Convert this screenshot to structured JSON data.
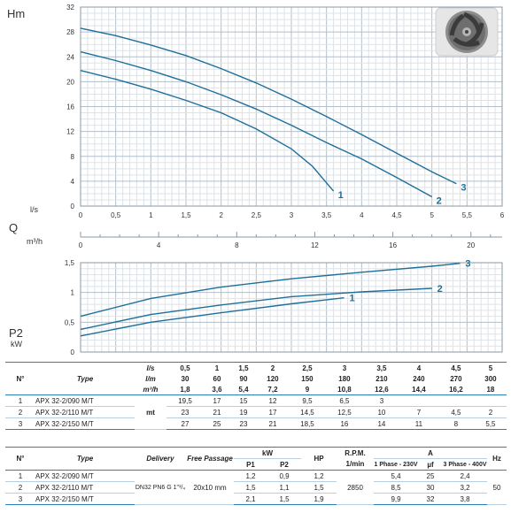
{
  "chart_data": [
    {
      "type": "line",
      "ylabel": "Hm",
      "xlabel": "l/s",
      "xlim": [
        0,
        6
      ],
      "ylim": [
        0,
        32
      ],
      "x_ticks": [
        "0",
        "0,5",
        "1",
        "1,5",
        "2",
        "2,5",
        "3",
        "3,5",
        "4",
        "4,5",
        "5",
        "5,5",
        "6"
      ],
      "y_ticks": [
        "0",
        "4",
        "8",
        "12",
        "16",
        "20",
        "24",
        "28",
        "32"
      ],
      "grid": true,
      "series": [
        {
          "name": "1",
          "color": "#1f6f9a",
          "points": [
            [
              0,
              21.8
            ],
            [
              0.5,
              20.4
            ],
            [
              1,
              18.8
            ],
            [
              1.5,
              17.0
            ],
            [
              2,
              15.0
            ],
            [
              2.5,
              12.4
            ],
            [
              3,
              9.2
            ],
            [
              3.3,
              6.4
            ],
            [
              3.6,
              2.4
            ]
          ]
        },
        {
          "name": "2",
          "color": "#1f6f9a",
          "points": [
            [
              0,
              24.8
            ],
            [
              0.5,
              23.4
            ],
            [
              1,
              21.8
            ],
            [
              1.5,
              20.0
            ],
            [
              2,
              17.9
            ],
            [
              2.5,
              15.6
            ],
            [
              3,
              13.0
            ],
            [
              3.5,
              10.2
            ],
            [
              4,
              7.6
            ],
            [
              4.5,
              4.6
            ],
            [
              5,
              1.5
            ]
          ]
        },
        {
          "name": "3",
          "color": "#1f6f9a",
          "points": [
            [
              0,
              28.6
            ],
            [
              0.5,
              27.4
            ],
            [
              1,
              25.9
            ],
            [
              1.5,
              24.2
            ],
            [
              2,
              22.1
            ],
            [
              2.5,
              19.8
            ],
            [
              3,
              17.2
            ],
            [
              3.5,
              14.4
            ],
            [
              4,
              11.5
            ],
            [
              4.5,
              8.5
            ],
            [
              5,
              5.5
            ],
            [
              5.35,
              3.6
            ]
          ]
        }
      ]
    },
    {
      "type": "axis",
      "label": "Q",
      "unit": "m³/h",
      "xlim": [
        0,
        21.6
      ],
      "ticks": [
        0,
        4,
        8,
        12,
        16,
        20
      ],
      "tick_labels": [
        "0",
        "4",
        "8",
        "12",
        "16",
        "20"
      ]
    },
    {
      "type": "line",
      "ylabel": "P2",
      "yunit": "kW",
      "xlim": [
        0,
        6
      ],
      "ylim": [
        0,
        1.5
      ],
      "y_ticks": [
        "0",
        "0,5",
        "1",
        "1,5"
      ],
      "grid": true,
      "series": [
        {
          "name": "1",
          "color": "#1f6f9a",
          "points": [
            [
              0,
              0.27
            ],
            [
              1,
              0.5
            ],
            [
              2,
              0.66
            ],
            [
              3,
              0.81
            ],
            [
              3.75,
              0.91
            ]
          ]
        },
        {
          "name": "2",
          "color": "#1f6f9a",
          "points": [
            [
              0,
              0.38
            ],
            [
              1,
              0.63
            ],
            [
              2,
              0.79
            ],
            [
              3,
              0.93
            ],
            [
              4,
              1.01
            ],
            [
              5,
              1.07
            ]
          ]
        },
        {
          "name": "3",
          "color": "#1f6f9a",
          "points": [
            [
              0,
              0.6
            ],
            [
              1,
              0.9
            ],
            [
              2,
              1.09
            ],
            [
              3,
              1.23
            ],
            [
              4,
              1.34
            ],
            [
              5,
              1.44
            ],
            [
              5.4,
              1.49
            ]
          ]
        }
      ]
    }
  ],
  "table1": {
    "head_no": "N°",
    "head_type": "Type",
    "units": [
      "l/s",
      "l/m",
      "m³/h"
    ],
    "unit_mt": "mt",
    "flow_ls": [
      "0,5",
      "1",
      "1,5",
      "2",
      "2,5",
      "3",
      "3,5",
      "4",
      "4,5",
      "5"
    ],
    "flow_lm": [
      "30",
      "60",
      "90",
      "120",
      "150",
      "180",
      "210",
      "240",
      "270",
      "300"
    ],
    "flow_m3h": [
      "1,8",
      "3,6",
      "5,4",
      "7,2",
      "9",
      "10,8",
      "12,6",
      "14,4",
      "16,2",
      "18"
    ],
    "rows": [
      {
        "no": "1",
        "type": "APX 32-2/090 M/T",
        "vals": [
          "19,5",
          "17",
          "15",
          "12",
          "9,5",
          "6,5",
          "3",
          "",
          "",
          ""
        ]
      },
      {
        "no": "2",
        "type": "APX 32-2/110 M/T",
        "vals": [
          "23",
          "21",
          "19",
          "17",
          "14,5",
          "12,5",
          "10",
          "7",
          "4,5",
          "2"
        ]
      },
      {
        "no": "3",
        "type": "APX 32-2/150 M/T",
        "vals": [
          "27",
          "25",
          "23",
          "21",
          "18,5",
          "16",
          "14",
          "11",
          "8",
          "5,5"
        ]
      }
    ]
  },
  "table2": {
    "head_no": "N°",
    "head_type": "Type",
    "head_delivery": "Delivery",
    "head_passage": "Free Passage",
    "head_kw": "kW",
    "head_p1": "P1",
    "head_p2": "P2",
    "head_hp": "HP",
    "head_rpm": "R.P.M.",
    "head_rpm_unit": "1/min",
    "head_a": "A",
    "head_1ph": "1 Phase - 230V",
    "head_uf": "µf",
    "head_3ph": "3 Phase - 400V",
    "head_hz": "Hz",
    "delivery": "DN32 PN6 G 1\"¹/₄",
    "passage": "20x10 mm",
    "rpm": "2850",
    "hz": "50",
    "rows": [
      {
        "no": "1",
        "type": "APX 32-2/090 M/T",
        "p1": "1,2",
        "p2": "0,9",
        "hp": "1,2",
        "a1": "5,4",
        "uf": "25",
        "a3": "2,4"
      },
      {
        "no": "2",
        "type": "APX 32-2/110 M/T",
        "p1": "1,5",
        "p2": "1,1",
        "hp": "1,5",
        "a1": "8,5",
        "uf": "30",
        "a3": "3,2"
      },
      {
        "no": "3",
        "type": "APX 32-2/150 M/T",
        "p1": "2,1",
        "p2": "1,5",
        "hp": "1,9",
        "a1": "9,9",
        "uf": "32",
        "a3": "3,8"
      }
    ]
  },
  "icons": {
    "impeller": "impeller-icon"
  }
}
